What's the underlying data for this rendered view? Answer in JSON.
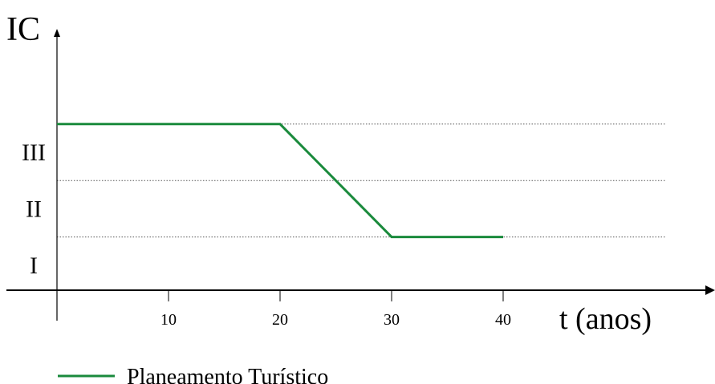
{
  "chart_data": {
    "type": "line",
    "ylabel": "IC",
    "xlabel": "t (anos)",
    "x_ticks": [
      10,
      20,
      30,
      40
    ],
    "y_levels": [
      "I",
      "II",
      "III"
    ],
    "xlim": [
      0,
      55
    ],
    "ylim": [
      0,
      3
    ],
    "grid": "dotted horizontal lines at level boundaries",
    "legend_position": "bottom-left",
    "series": [
      {
        "name": "Planeamento Turístico",
        "color": "#1a8a3c",
        "x": [
          0,
          20,
          30,
          40
        ],
        "y": [
          3,
          3,
          1,
          1
        ]
      }
    ]
  }
}
